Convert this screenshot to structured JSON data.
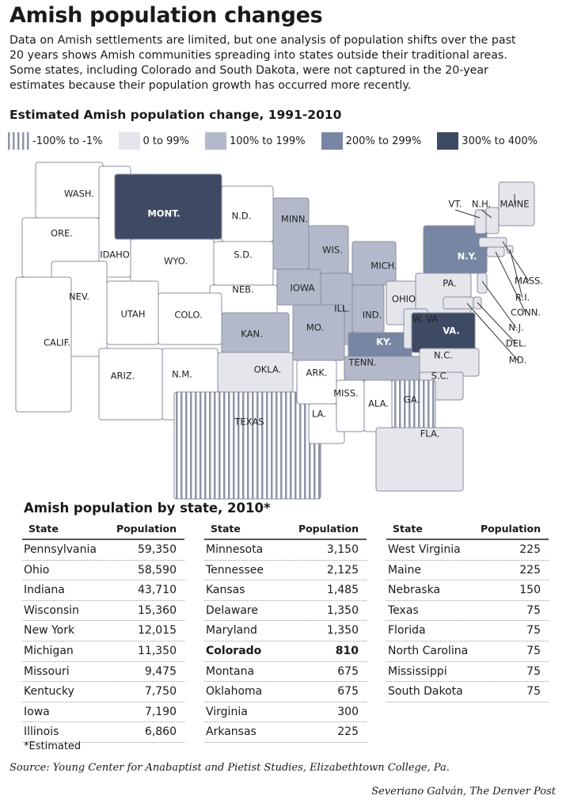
{
  "header": {
    "title": "Amish population changes",
    "intro": [
      "Data on Amish settlements are limited, but one analysis of population shifts over the past",
      "20 years shows Amish communities spreading into states outside their traditional areas.",
      "Some states, including Colorado and South Dakota, were not captured in the 20-year",
      "estimates because their population growth has occurred more recently."
    ]
  },
  "legend": {
    "title": "Estimated Amish population change, 1991-2010",
    "items": [
      {
        "label": "-100% to -1%",
        "color": "#b9bdc9",
        "hatched": true
      },
      {
        "label": "0 to 99%",
        "color": "#e4e6ec"
      },
      {
        "label": "100% to 199%",
        "color": "#b3b9ca"
      },
      {
        "label": "200% to 299%",
        "color": "#7886a4"
      },
      {
        "label": "300% to 400%",
        "color": "#3e4964"
      }
    ]
  },
  "map": {
    "states": [
      {
        "label": "WASH.",
        "bin": null
      },
      {
        "label": "ORE.",
        "bin": null
      },
      {
        "label": "IDAHO",
        "bin": null
      },
      {
        "label": "MONT.",
        "bin": 4
      },
      {
        "label": "WYO.",
        "bin": null
      },
      {
        "label": "N.D.",
        "bin": null
      },
      {
        "label": "S.D.",
        "bin": null
      },
      {
        "label": "NEB.",
        "bin": null
      },
      {
        "label": "MINN.",
        "bin": 2
      },
      {
        "label": "WIS.",
        "bin": 2
      },
      {
        "label": "MICH.",
        "bin": 2
      },
      {
        "label": "IOWA",
        "bin": 2
      },
      {
        "label": "ILL.",
        "bin": 2
      },
      {
        "label": "IND.",
        "bin": 2
      },
      {
        "label": "OHIO",
        "bin": 1
      },
      {
        "label": "PA.",
        "bin": 1
      },
      {
        "label": "N.Y.",
        "bin": 3
      },
      {
        "label": "NEV.",
        "bin": null
      },
      {
        "label": "CALIF.",
        "bin": null
      },
      {
        "label": "UTAH",
        "bin": null
      },
      {
        "label": "COLO.",
        "bin": null
      },
      {
        "label": "KAN.",
        "bin": 2
      },
      {
        "label": "MO.",
        "bin": 2
      },
      {
        "label": "KY.",
        "bin": 3
      },
      {
        "label": "W. VA",
        "bin": 1
      },
      {
        "label": "VA.",
        "bin": 4
      },
      {
        "label": "N.C.",
        "bin": 1
      },
      {
        "label": "S.C.",
        "bin": 1
      },
      {
        "label": "TENN.",
        "bin": 2
      },
      {
        "label": "ARIZ.",
        "bin": null
      },
      {
        "label": "N.M.",
        "bin": null
      },
      {
        "label": "OKLA.",
        "bin": 1
      },
      {
        "label": "TEXAS",
        "bin": 0
      },
      {
        "label": "ARK.",
        "bin": null
      },
      {
        "label": "LA.",
        "bin": null
      },
      {
        "label": "MISS.",
        "bin": null
      },
      {
        "label": "ALA.",
        "bin": null
      },
      {
        "label": "GA.",
        "bin": 0
      },
      {
        "label": "FLA.",
        "bin": 1
      },
      {
        "label": "VT.",
        "bin": 1
      },
      {
        "label": "N.H.",
        "bin": 1
      },
      {
        "label": "MAINE",
        "bin": 1
      },
      {
        "label": "MASS.",
        "bin": 1
      },
      {
        "label": "R.I.",
        "bin": 1
      },
      {
        "label": "CONN.",
        "bin": 1
      },
      {
        "label": "N.J.",
        "bin": 1
      },
      {
        "label": "DEL.",
        "bin": 1
      },
      {
        "label": "MD.",
        "bin": 1
      }
    ]
  },
  "table": {
    "title": "Amish population by state, 2010*",
    "groups": [
      {
        "headers": [
          "State",
          "Population"
        ],
        "rows": [
          {
            "cells": [
              "Pennsylvania",
              "59,350"
            ]
          },
          {
            "cells": [
              "Ohio",
              "58,590"
            ]
          },
          {
            "cells": [
              "Indiana",
              "43,710"
            ]
          },
          {
            "cells": [
              "Wisconsin",
              "15,360"
            ]
          },
          {
            "cells": [
              "New York",
              "12,015"
            ]
          },
          {
            "cells": [
              "Michigan",
              "11,350"
            ]
          },
          {
            "cells": [
              "Missouri",
              "9,475"
            ]
          },
          {
            "cells": [
              "Kentucky",
              "7,750"
            ]
          },
          {
            "cells": [
              "Iowa",
              "7,190"
            ]
          },
          {
            "cells": [
              "Illinois",
              "6,860"
            ]
          }
        ]
      },
      {
        "headers": [
          "State",
          "Population"
        ],
        "rows": [
          {
            "cells": [
              "Minnesota",
              "3,150"
            ]
          },
          {
            "cells": [
              "Tennessee",
              "2,125"
            ]
          },
          {
            "cells": [
              "Kansas",
              "1,485"
            ]
          },
          {
            "cells": [
              "Delaware",
              "1,350"
            ]
          },
          {
            "cells": [
              "Maryland",
              "1,350"
            ]
          },
          {
            "cells": [
              "Colorado",
              "810"
            ],
            "bold": true
          },
          {
            "cells": [
              "Montana",
              "675"
            ]
          },
          {
            "cells": [
              "Oklahoma",
              "675"
            ]
          },
          {
            "cells": [
              "Virginia",
              "300"
            ]
          },
          {
            "cells": [
              "Arkansas",
              "225"
            ]
          }
        ]
      },
      {
        "headers": [
          "State",
          "Population"
        ],
        "rows": [
          {
            "cells": [
              "West Virginia",
              "225"
            ]
          },
          {
            "cells": [
              "Maine",
              "225"
            ]
          },
          {
            "cells": [
              "Nebraska",
              "150"
            ]
          },
          {
            "cells": [
              "Texas",
              "75"
            ]
          },
          {
            "cells": [
              "Florida",
              "75"
            ]
          },
          {
            "cells": [
              "North Carolina",
              "75"
            ]
          },
          {
            "cells": [
              "Mississippi",
              "75"
            ]
          },
          {
            "cells": [
              "South Dakota",
              "75"
            ]
          }
        ]
      }
    ],
    "footnote": "*Estimated"
  },
  "footer": {
    "source": "Source: Young Center for Anabaptist and Pietist Studies, Elizabethtown College, Pa.",
    "credit": "Severiano Galván, The Denver Post"
  }
}
